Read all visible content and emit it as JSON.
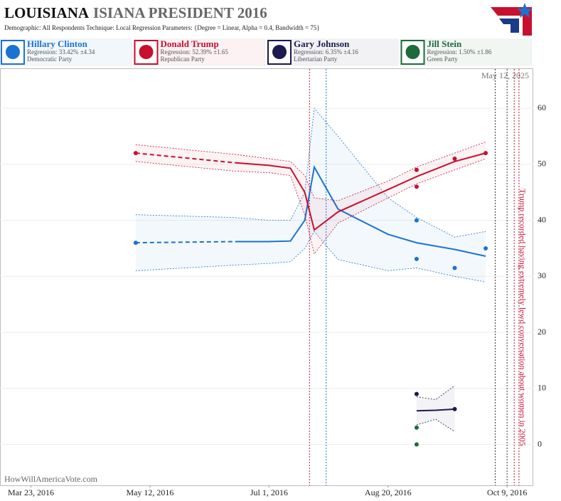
{
  "chart_data": {
    "type": "line",
    "title_main": "LOUISIANA",
    "title_rest": "ISIANA PRESIDENT 2016",
    "subtitle": "Demographic: All Respondents    Technique: Local Regression    Parameters: {Degree = Linear, Alpha = 0.4, Bandwidth = 75}",
    "date_note": "May 12, 2025",
    "watermark": "HowWillAmericaVote.com",
    "xlim": [
      "2016-03-10",
      "2016-10-20"
    ],
    "xticks": [
      {
        "value": "2016-03-23",
        "label": "Mar 23, 2016"
      },
      {
        "value": "2016-05-12",
        "label": "May 12, 2016"
      },
      {
        "value": "2016-07-01",
        "label": "Jul 1, 2016"
      },
      {
        "value": "2016-08-20",
        "label": "Aug 20, 2016"
      },
      {
        "value": "2016-10-09",
        "label": "Oct 9, 2016"
      }
    ],
    "ylim": [
      -7.3,
      67
    ],
    "yticks": [
      0,
      10,
      20,
      30,
      40,
      50,
      60
    ],
    "grid": true,
    "events": [
      {
        "x": "2016-07-18",
        "color": "#c8102e"
      },
      {
        "x": "2016-07-25",
        "color": "#1a73d0"
      },
      {
        "x": "2016-10-04",
        "color": "#333333"
      },
      {
        "x": "2016-10-09",
        "color": "#333333"
      },
      {
        "x": "2016-10-12",
        "color": "#c8102e"
      },
      {
        "x": "2016-10-14",
        "color": "#c8102e",
        "annotation": "Trump recorded having extremely lewd conversation about women in 2005"
      }
    ],
    "series": [
      {
        "name": "Hillary Clinton",
        "color": "#1a73d0",
        "regression": "Regression: 33.42% ±4.34",
        "party": "Democratic Party",
        "points": {
          "x": [
            "2016-05-06",
            "2016-09-01",
            "2016-09-01",
            "2016-09-17",
            "2016-09-30"
          ],
          "values": [
            36,
            40,
            33.1,
            31.5,
            35
          ]
        },
        "fit": {
          "x": [
            "2016-05-06",
            "2016-06-16",
            "2016-07-01",
            "2016-07-10",
            "2016-07-16",
            "2016-07-20",
            "2016-07-30",
            "2016-08-20",
            "2016-09-01",
            "2016-09-17",
            "2016-09-30"
          ],
          "values": [
            36,
            36.2,
            36.2,
            36.3,
            40,
            49.5,
            42,
            37.5,
            36,
            34.8,
            33.6
          ],
          "upper": [
            41,
            40.5,
            40,
            40,
            45,
            60,
            55,
            44,
            40.5,
            37,
            38
          ],
          "lower": [
            31,
            32,
            32.3,
            32.6,
            35,
            38,
            33,
            31,
            31.5,
            30,
            29
          ]
        }
      },
      {
        "name": "Donald Trump",
        "color": "#c8102e",
        "regression": "Regression: 52.39% ±1.65",
        "party": "Republican Party",
        "points": {
          "x": [
            "2016-05-06",
            "2016-09-01",
            "2016-09-01",
            "2016-09-17",
            "2016-09-30"
          ],
          "values": [
            52,
            49,
            46,
            51,
            52
          ]
        },
        "fit": {
          "x": [
            "2016-05-06",
            "2016-06-16",
            "2016-07-01",
            "2016-07-10",
            "2016-07-16",
            "2016-07-20",
            "2016-07-30",
            "2016-08-20",
            "2016-09-01",
            "2016-09-17",
            "2016-09-30"
          ],
          "values": [
            52,
            50.3,
            49.8,
            49.3,
            45,
            38.3,
            41.5,
            45.5,
            47.8,
            50.5,
            52
          ],
          "upper": [
            53.5,
            51.8,
            51,
            50.5,
            48,
            44,
            43.5,
            47,
            49.5,
            52,
            54
          ],
          "lower": [
            50.5,
            48.8,
            48.5,
            48,
            41,
            34,
            39.5,
            44,
            46.5,
            49,
            51
          ]
        }
      },
      {
        "name": "Gary Johnson",
        "color": "#1c1a4e",
        "regression": "Regression: 6.35% ±4.16",
        "party": "Libertarian Party",
        "points": {
          "x": [
            "2016-09-01",
            "2016-09-17"
          ],
          "values": [
            9,
            6.3
          ]
        },
        "fit": {
          "x": [
            "2016-09-01",
            "2016-09-09",
            "2016-09-17"
          ],
          "values": [
            6,
            6.1,
            6.3
          ],
          "upper": [
            8.5,
            8,
            10.5
          ],
          "lower": [
            3.5,
            4.5,
            2.3
          ]
        }
      },
      {
        "name": "Jill Stein",
        "color": "#1e6b3a",
        "regression": "Regression: 1.50% ±1.86",
        "party": "Green Party",
        "points": {
          "x": [
            "2016-09-01",
            "2016-09-01"
          ],
          "values": [
            3,
            0
          ]
        }
      }
    ]
  }
}
